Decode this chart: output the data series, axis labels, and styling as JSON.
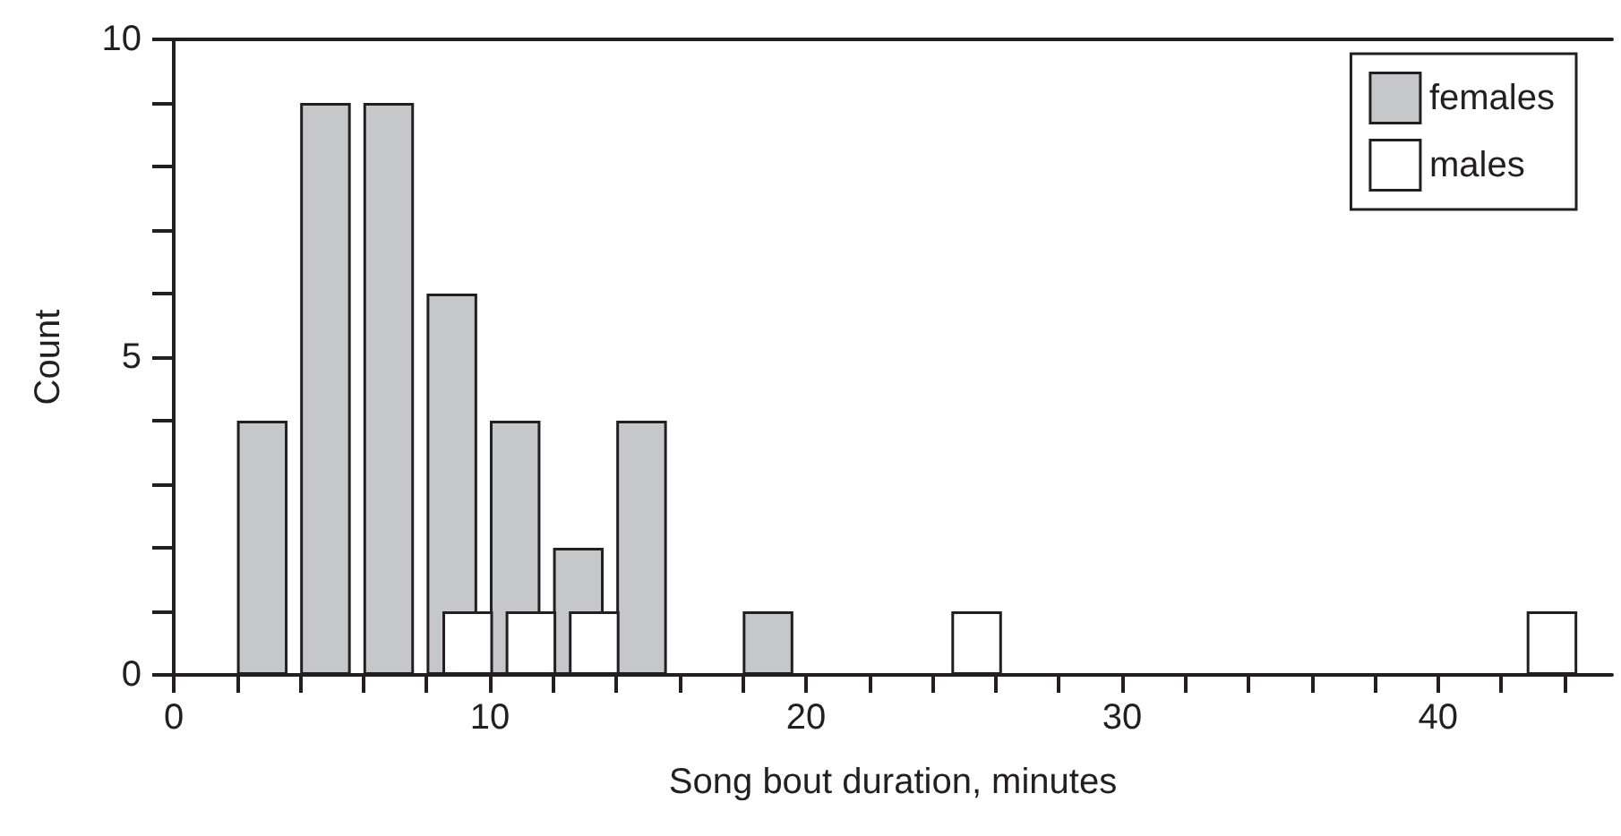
{
  "chart_data": {
    "type": "bar",
    "xlabel": "Song bout duration, minutes",
    "ylabel": "Count",
    "series": [
      {
        "name": "females",
        "color": "#c6c7c9",
        "x": [
          2.8,
          4.8,
          6.8,
          8.8,
          10.8,
          12.8,
          14.8,
          18.8
        ],
        "values": [
          4,
          9,
          9,
          6,
          4,
          2,
          4,
          1
        ]
      },
      {
        "name": "males",
        "color": "#ffffff",
        "x": [
          9.3,
          11.3,
          13.3,
          25.4,
          43.6
        ],
        "values": [
          1,
          1,
          1,
          1,
          1
        ]
      }
    ],
    "xlim": [
      0,
      45.5
    ],
    "xticks": [
      0,
      {
        "value": 2,
        "label": null
      },
      {
        "value": 4,
        "label": null
      },
      {
        "value": 6,
        "label": null
      },
      {
        "value": 8,
        "label": null
      },
      10,
      {
        "value": 12,
        "label": null
      },
      {
        "value": 14,
        "label": null
      },
      {
        "value": 16,
        "label": null
      },
      {
        "value": 18,
        "label": null
      },
      20,
      {
        "value": 22,
        "label": null
      },
      {
        "value": 24,
        "label": null
      },
      {
        "value": 26,
        "label": null
      },
      {
        "value": 28,
        "label": null
      },
      30,
      {
        "value": 32,
        "label": null
      },
      {
        "value": 34,
        "label": null
      },
      {
        "value": 36,
        "label": null
      },
      {
        "value": 38,
        "label": null
      },
      40,
      {
        "value": 42,
        "label": null
      },
      {
        "value": 44,
        "label": null
      }
    ],
    "ylim": [
      0,
      10
    ],
    "yticks": [
      0,
      {
        "value": 1,
        "label": null
      },
      {
        "value": 2,
        "label": null
      },
      {
        "value": 3,
        "label": null
      },
      {
        "value": 4,
        "label": null
      },
      5,
      {
        "value": 6,
        "label": null
      },
      {
        "value": 7,
        "label": null
      },
      {
        "value": 8,
        "label": null
      },
      {
        "value": 9,
        "label": null
      },
      10
    ],
    "legend": "top right",
    "grid": false
  }
}
